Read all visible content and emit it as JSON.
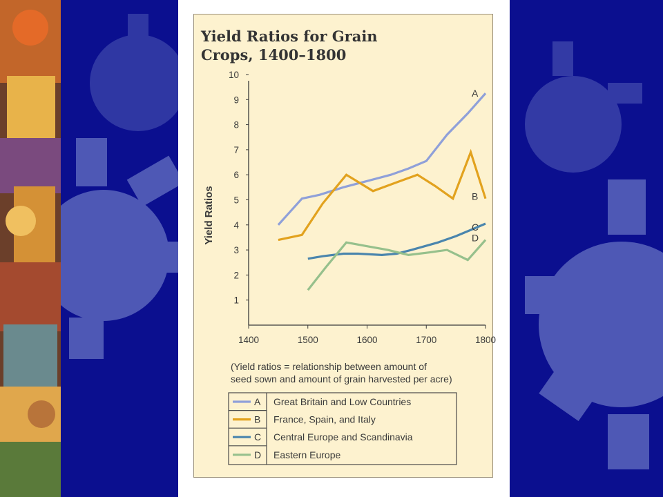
{
  "slide": {
    "background_color": "#0b0f8f",
    "gear_color": "#4e58b5",
    "panel_color": "#ffffff",
    "figure_bg": "#fdf2cf"
  },
  "chart_data": {
    "type": "line",
    "title_lines": [
      "Yield Ratios for Grain",
      "Crops, 1400–1800"
    ],
    "ylabel": "Yield Ratios",
    "xlabel": "",
    "xlim": [
      1400,
      1800
    ],
    "ylim": [
      0,
      10
    ],
    "x_ticks": [
      1400,
      1500,
      1600,
      1700,
      1800
    ],
    "y_ticks": [
      1,
      2,
      3,
      4,
      5,
      6,
      7,
      8,
      9,
      10
    ],
    "grid": false,
    "legend_position": "bottom",
    "note_lines": [
      "(Yield ratios = relationship between amount of",
      "seed sown and amount of grain harvested per acre)"
    ],
    "series": [
      {
        "id": "A",
        "name": "Great Britain and Low Countries",
        "color": "#8fa0d9",
        "x": [
          1450,
          1490,
          1520,
          1560,
          1600,
          1640,
          1670,
          1700,
          1735,
          1770,
          1800
        ],
        "y": [
          4.0,
          5.05,
          5.2,
          5.5,
          5.75,
          6.0,
          6.25,
          6.55,
          7.6,
          8.45,
          9.25
        ]
      },
      {
        "id": "B",
        "name": "France, Spain, and Italy",
        "color": "#e2a21e",
        "x": [
          1450,
          1490,
          1525,
          1565,
          1610,
          1650,
          1685,
          1715,
          1745,
          1775,
          1800
        ],
        "y": [
          3.4,
          3.6,
          4.85,
          6.0,
          5.35,
          5.7,
          6.0,
          5.55,
          5.05,
          6.9,
          5.05
        ]
      },
      {
        "id": "C",
        "name": "Central Europe and Scandinavia",
        "color": "#4a85ad",
        "x": [
          1500,
          1525,
          1560,
          1585,
          1625,
          1650,
          1675,
          1720,
          1750,
          1775,
          1800
        ],
        "y": [
          2.65,
          2.75,
          2.85,
          2.85,
          2.8,
          2.85,
          3.0,
          3.3,
          3.55,
          3.8,
          4.05
        ]
      },
      {
        "id": "D",
        "name": "Eastern Europe",
        "color": "#96c08c",
        "x": [
          1500,
          1530,
          1565,
          1600,
          1635,
          1670,
          1705,
          1735,
          1770,
          1800
        ],
        "y": [
          1.4,
          2.3,
          3.3,
          3.15,
          3.0,
          2.8,
          2.9,
          3.0,
          2.6,
          3.4
        ]
      }
    ]
  }
}
